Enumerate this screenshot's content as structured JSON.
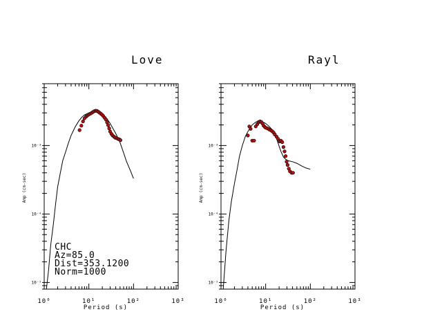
{
  "chart_data": [
    {
      "type": "scatter",
      "title": "Love",
      "xlabel": "Period (s)",
      "ylabel": "Amp (cm-sec)",
      "xscale": "log",
      "yscale": "log",
      "xlim": [
        1,
        1000
      ],
      "ylim": [
        8e-06,
        0.008
      ],
      "x_ticks": [
        1,
        10,
        100,
        1000
      ],
      "y_ticks": [
        1e-05,
        0.0001,
        0.001
      ],
      "station": "CHC",
      "info_lines": [
        "CHC",
        "Az=85.0",
        "Dist=353.1200",
        "Norm=1000"
      ],
      "series": [
        {
          "name": "",
          "kind": "line",
          "x": [
            1.12,
            1.25,
            1.4,
            1.6,
            1.8,
            2.0,
            2.3,
            2.6,
            3.0,
            3.5,
            4.0,
            5.0,
            6.0,
            7.0,
            8.0,
            10.0,
            12.0,
            14.0,
            16.0,
            18.0,
            20.0,
            25.0,
            30.0,
            40.0,
            50.0,
            60.0,
            70.0,
            85.0,
            100.0
          ],
          "y": [
            8e-06,
            1.5e-05,
            3.5e-05,
            7e-05,
            0.00014,
            0.00025,
            0.0004,
            0.0006,
            0.0008,
            0.0011,
            0.0014,
            0.0019,
            0.0023,
            0.0026,
            0.0028,
            0.003,
            0.00315,
            0.0032,
            0.0032,
            0.0031,
            0.0029,
            0.0025,
            0.0021,
            0.0015,
            0.0011,
            0.00078,
            0.00058,
            0.00043,
            0.00033
          ]
        },
        {
          "name": "",
          "kind": "points",
          "x": [
            6.2,
            6.8,
            7.4,
            8.0,
            8.7,
            9.3,
            10.0,
            10.8,
            11.6,
            12.4,
            13.3,
            14.2,
            15.2,
            16.2,
            17.3,
            18.5,
            19.7,
            21.0,
            22.5,
            24.0,
            25.5,
            27.0,
            28.5,
            30.0,
            32.0,
            34.0,
            36.5,
            39.0,
            42.0,
            45.0,
            48.0,
            51.0
          ],
          "y": [
            0.00168,
            0.00195,
            0.00225,
            0.0025,
            0.00265,
            0.00275,
            0.00285,
            0.00292,
            0.003,
            0.0031,
            0.00318,
            0.00322,
            0.0032,
            0.00312,
            0.00302,
            0.00292,
            0.00282,
            0.0027,
            0.00255,
            0.0024,
            0.00218,
            0.00198,
            0.00178,
            0.0016,
            0.00148,
            0.0014,
            0.00135,
            0.0013,
            0.00128,
            0.00125,
            0.00123,
            0.0012
          ]
        }
      ]
    },
    {
      "type": "scatter",
      "title": "Rayl",
      "xlabel": "Period (s)",
      "ylabel": "Amp (cm-sec)",
      "xscale": "log",
      "yscale": "log",
      "xlim": [
        1,
        1000
      ],
      "ylim": [
        8e-06,
        0.008
      ],
      "x_ticks": [
        1,
        10,
        100,
        1000
      ],
      "y_ticks": [
        1e-05,
        0.0001,
        0.001
      ],
      "series": [
        {
          "name": "",
          "kind": "line",
          "x": [
            1.12,
            1.3,
            1.5,
            1.7,
            2.0,
            2.3,
            2.6,
            3.0,
            3.5,
            4.0,
            5.0,
            6.0,
            7.0,
            8.0,
            9.0,
            10.0,
            12.0,
            14.0,
            16.0,
            18.0,
            20.0,
            22.0,
            25.0,
            28.0,
            32.0,
            40.0,
            50.0,
            65.0,
            80.0,
            100.0
          ],
          "y": [
            8e-06,
            3e-05,
            8e-05,
            0.00015,
            0.00028,
            0.00045,
            0.0007,
            0.001,
            0.00135,
            0.0016,
            0.002,
            0.0022,
            0.0023,
            0.00225,
            0.00218,
            0.0021,
            0.0019,
            0.0017,
            0.00145,
            0.0012,
            0.00098,
            0.00082,
            0.00068,
            0.00063,
            0.0006,
            0.00058,
            0.00055,
            0.0005,
            0.00047,
            0.00045
          ]
        },
        {
          "name": "",
          "kind": "points",
          "x": [
            4.0,
            4.3,
            4.6,
            5.0,
            5.5,
            6.0,
            6.5,
            7.0,
            7.5,
            8.0,
            8.5,
            9.0,
            9.5,
            10.0,
            11.0,
            12.0,
            13.0,
            14.0,
            15.0,
            16.0,
            17.5,
            19.0,
            20.5,
            22.0,
            23.5,
            25.0,
            26.5,
            28.0,
            29.5,
            31.0,
            33.0,
            35.0,
            38.0,
            41.0
          ],
          "y": [
            0.0014,
            0.0019,
            0.00175,
            0.00118,
            0.00118,
            0.0019,
            0.00205,
            0.0022,
            0.00225,
            0.0022,
            0.0021,
            0.00195,
            0.00188,
            0.00182,
            0.00178,
            0.00172,
            0.00168,
            0.00162,
            0.00155,
            0.00145,
            0.00135,
            0.00125,
            0.00115,
            0.00118,
            0.00112,
            0.00095,
            0.00082,
            0.0007,
            0.00058,
            0.00052,
            0.00046,
            0.00042,
            0.0004,
            0.0004
          ]
        }
      ]
    }
  ]
}
